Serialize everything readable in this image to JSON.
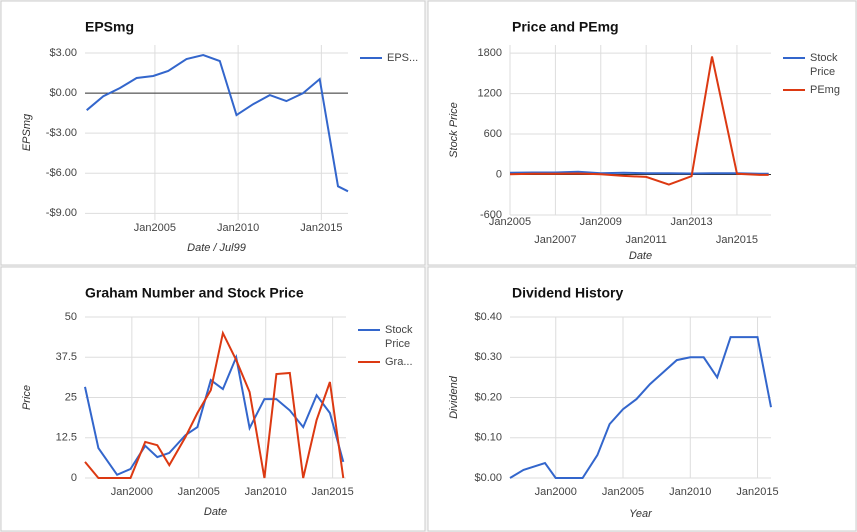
{
  "chart_data": [
    {
      "type": "line",
      "title": "EPSmg",
      "y_label": "EPSmg",
      "x_label": "Date / Jul99",
      "legend": "right",
      "grid": true,
      "x": [
        2000.9,
        2001.9,
        2002.9,
        2003.9,
        2004.9,
        2005.8,
        2006.9,
        2007.9,
        2008.9,
        2009.9,
        2010.9,
        2011.9,
        2012.9,
        2013.9,
        2014.9,
        2016.0,
        2016.6
      ],
      "series": [
        {
          "name": "EPS...",
          "color": "#3366cc",
          "values": [
            -1.28,
            -0.23,
            0.38,
            1.13,
            1.28,
            1.65,
            2.55,
            2.85,
            2.4,
            -1.65,
            -0.83,
            -0.15,
            -0.6,
            0,
            1.05,
            -6.98,
            -7.35
          ]
        }
      ],
      "xlim": [
        2000.8,
        2016.6
      ],
      "ylim": [
        -9.5,
        3.6
      ],
      "xticks": [
        {
          "value": 2005,
          "label": "Jan2005"
        },
        {
          "value": 2010,
          "label": "Jan2010"
        },
        {
          "value": 2015,
          "label": "Jan2015"
        }
      ],
      "yticks": [
        {
          "value": 3,
          "label": "$3.00"
        },
        {
          "value": 0,
          "label": "$0.00"
        },
        {
          "value": -3,
          "label": "-$3.00"
        },
        {
          "value": -6,
          "label": "-$6.00"
        },
        {
          "value": -9,
          "label": "-$9.00"
        }
      ]
    },
    {
      "type": "line",
      "title": "Price and PEmg",
      "y_label": "Stock Price",
      "x_label": "Date",
      "legend": "right",
      "grid": true,
      "x": [
        2005,
        2006,
        2007,
        2008,
        2009,
        2010,
        2011,
        2012,
        2013,
        2013.9,
        2015,
        2016,
        2016.4
      ],
      "series": [
        {
          "name": "Stock Price",
          "color": "#3366cc",
          "values": [
            25,
            30,
            30,
            40,
            20,
            25,
            20,
            20,
            15,
            20,
            20,
            10,
            10
          ]
        },
        {
          "name": "PEmg",
          "color": "#dc3912",
          "values": [
            5,
            10,
            10,
            15,
            5,
            -20,
            -35,
            -150,
            -25,
            1750,
            10,
            -5,
            -5
          ]
        }
      ],
      "xlim": [
        2005,
        2016.5
      ],
      "ylim": [
        -600,
        1920
      ],
      "xticks": [
        {
          "value": 2005,
          "label": "Jan2005"
        },
        {
          "value": 2007,
          "label": "Jan2007"
        },
        {
          "value": 2009,
          "label": "Jan2009"
        },
        {
          "value": 2011,
          "label": "Jan2011"
        },
        {
          "value": 2013,
          "label": "Jan2013"
        },
        {
          "value": 2015,
          "label": "Jan2015"
        }
      ],
      "yticks": [
        1800,
        1200,
        600,
        0,
        -600
      ]
    },
    {
      "type": "line",
      "title": "Graham Number and Stock Price",
      "y_label": "Price",
      "x_label": "Date",
      "legend": "right",
      "grid": true,
      "x": [
        1996.5,
        1997.5,
        1998.9,
        1999.9,
        2001.0,
        2001.9,
        2002.8,
        2004.0,
        2004.9,
        2005.9,
        2006.8,
        2007.8,
        2008.8,
        2009.9,
        2010.8,
        2011.8,
        2012.8,
        2013.8,
        2014.8,
        2015.8
      ],
      "series": [
        {
          "name": "Stock Price",
          "color": "#3366cc",
          "values": [
            28.3,
            9.3,
            1,
            2.8,
            10,
            6.5,
            7.8,
            13.3,
            15.8,
            30.4,
            27.6,
            37.5,
            15.5,
            24.5,
            24.5,
            21,
            15.8,
            25.7,
            20.2,
            5
          ]
        },
        {
          "name": "Gra...",
          "color": "#dc3912",
          "values": [
            5,
            0,
            0,
            0,
            11.2,
            10.2,
            4,
            12.7,
            20.2,
            27.3,
            45,
            36.6,
            26.7,
            0,
            32.3,
            32.6,
            0,
            18,
            29.8,
            0
          ]
        }
      ],
      "xlim": [
        1996.5,
        2016
      ],
      "ylim": [
        0,
        50
      ],
      "xticks": [
        {
          "value": 2000,
          "label": "Jan2000"
        },
        {
          "value": 2005,
          "label": "Jan2005"
        },
        {
          "value": 2010,
          "label": "Jan2010"
        },
        {
          "value": 2015,
          "label": "Jan2015"
        }
      ],
      "yticks": [
        50,
        37.5,
        25,
        12.5,
        0
      ]
    },
    {
      "type": "line",
      "title": "Dividend History",
      "y_label": "Dividend",
      "x_label": "Year",
      "legend": "none",
      "grid": true,
      "x": [
        1996.6,
        1997.6,
        1999.2,
        2000,
        2001,
        2002,
        2003.1,
        2004,
        2005,
        2006,
        2007,
        2008,
        2009,
        2010,
        2011,
        2012,
        2013,
        2014,
        2015,
        2016
      ],
      "series": [
        {
          "color": "#3366cc",
          "values": [
            0,
            0.02,
            0.037,
            0,
            0,
            0,
            0.057,
            0.134,
            0.171,
            0.196,
            0.233,
            0.263,
            0.293,
            0.3,
            0.3,
            0.25,
            0.35,
            0.35,
            0.35,
            0.176
          ]
        }
      ],
      "xlim": [
        1996.6,
        2016
      ],
      "ylim": [
        0,
        0.4
      ],
      "xticks": [
        {
          "value": 2000,
          "label": "Jan2000"
        },
        {
          "value": 2005,
          "label": "Jan2005"
        },
        {
          "value": 2010,
          "label": "Jan2010"
        },
        {
          "value": 2015,
          "label": "Jan2015"
        }
      ],
      "yticks": [
        {
          "value": 0.4,
          "label": "$0.40"
        },
        {
          "value": 0.3,
          "label": "$0.30"
        },
        {
          "value": 0.2,
          "label": "$0.20"
        },
        {
          "value": 0.1,
          "label": "$0.10"
        },
        {
          "value": 0,
          "label": "$0.00"
        }
      ]
    }
  ]
}
